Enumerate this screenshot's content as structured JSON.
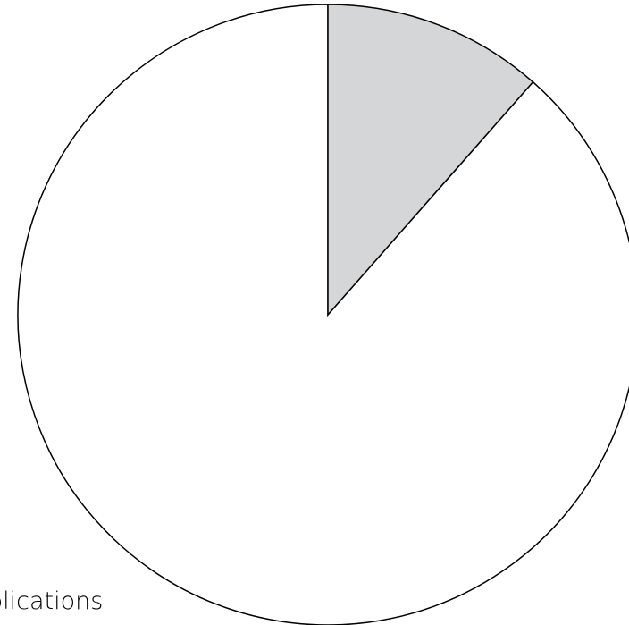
{
  "chart_data": {
    "type": "pie",
    "start_angle_deg": 0,
    "direction": "clockwise",
    "slices": [
      {
        "label": "",
        "value": 11.5,
        "color": "#d5d6d8"
      },
      {
        "label": "plications",
        "value": 88.5,
        "color": "#ffffff"
      }
    ],
    "stroke_color": "#000000"
  }
}
